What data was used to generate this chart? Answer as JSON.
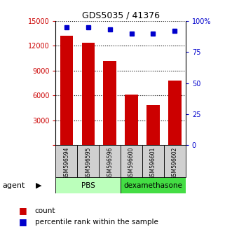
{
  "title": "GDS5035 / 41376",
  "samples": [
    "GSM596594",
    "GSM596595",
    "GSM596596",
    "GSM596600",
    "GSM596601",
    "GSM596602"
  ],
  "counts": [
    13200,
    12400,
    10200,
    6100,
    4800,
    7800
  ],
  "percentile_ranks": [
    95,
    95,
    93,
    90,
    90,
    92
  ],
  "group_colors": [
    "#aaffaa",
    "#44cc44"
  ],
  "bar_color": "#CC0000",
  "dot_color": "#0000CC",
  "ylim_left": [
    0,
    15000
  ],
  "ylim_right": [
    0,
    100
  ],
  "yticks_left": [
    0,
    3000,
    6000,
    9000,
    12000,
    15000
  ],
  "ytick_labels_left": [
    "",
    "3000",
    "6000",
    "9000",
    "12000",
    "15000"
  ],
  "yticks_right": [
    0,
    25,
    50,
    75,
    100
  ],
  "ytick_labels_right": [
    "0",
    "25",
    "50",
    "75",
    "100%"
  ],
  "left_axis_color": "#CC0000",
  "right_axis_color": "#0000CC",
  "agent_label": "agent",
  "bar_width": 0.6,
  "group_spans": [
    {
      "start": 0,
      "end": 2,
      "label": "PBS",
      "color": "#bbffbb"
    },
    {
      "start": 3,
      "end": 5,
      "label": "dexamethasone",
      "color": "#44dd44"
    }
  ]
}
